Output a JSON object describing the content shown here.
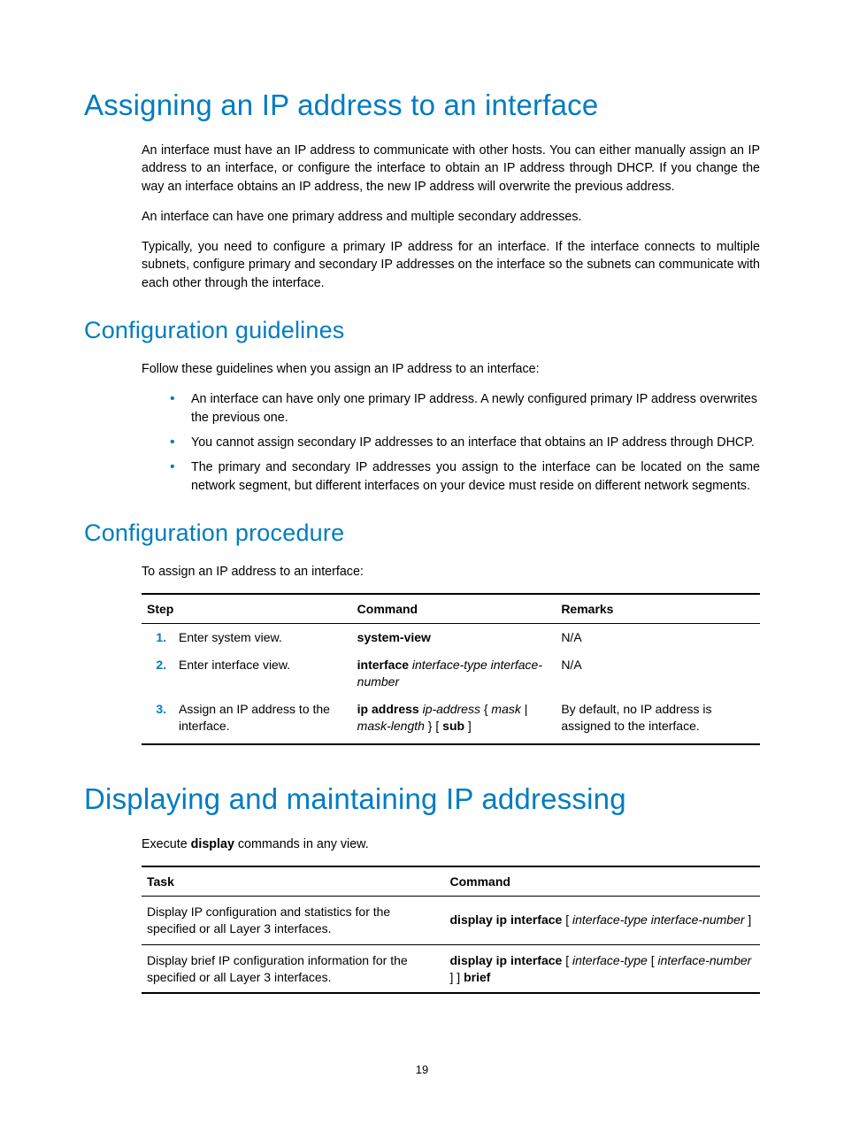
{
  "heading1": "Assigning an IP address to an interface",
  "intro_p1": "An interface must have an IP address to communicate with other hosts. You can either manually assign an IP address to an interface, or configure the interface to obtain an IP address through DHCP. If you change the way an interface obtains an IP address, the new IP address will overwrite the previous address.",
  "intro_p2": "An interface can have one primary address and multiple secondary addresses.",
  "intro_p3": "Typically, you need to configure a primary IP address for an interface. If the interface connects to multiple subnets, configure primary and secondary IP addresses on the interface so the subnets can communicate with each other through the interface.",
  "heading2": "Configuration guidelines",
  "guidelines_intro": "Follow these guidelines when you assign an IP address to an interface:",
  "bullets": [
    "An interface can have only one primary IP address. A newly configured primary IP address overwrites the previous one.",
    "You cannot assign secondary IP addresses to an interface that obtains an IP address through DHCP.",
    "The primary and secondary IP addresses you assign to the interface can be located on the same network segment, but different interfaces on your device must reside on different network segments."
  ],
  "heading3": "Configuration procedure",
  "proc_intro": "To assign an IP address to an interface:",
  "proc_table": {
    "headers": {
      "step": "Step",
      "command": "Command",
      "remarks": "Remarks"
    },
    "rows": [
      {
        "num": "1.",
        "step": "Enter system view.",
        "cmd_parts": [
          {
            "t": "b",
            "v": "system-view"
          }
        ],
        "remarks": "N/A"
      },
      {
        "num": "2.",
        "step": "Enter interface view.",
        "cmd_parts": [
          {
            "t": "b",
            "v": "interface"
          },
          {
            "t": "s",
            "v": " "
          },
          {
            "t": "i",
            "v": "interface-type interface-number"
          }
        ],
        "remarks": "N/A"
      },
      {
        "num": "3.",
        "step": "Assign an IP address to the interface.",
        "cmd_parts": [
          {
            "t": "b",
            "v": "ip address"
          },
          {
            "t": "s",
            "v": " "
          },
          {
            "t": "i",
            "v": "ip-address"
          },
          {
            "t": "s",
            "v": " { "
          },
          {
            "t": "i",
            "v": "mask"
          },
          {
            "t": "s",
            "v": " | "
          },
          {
            "t": "i",
            "v": "mask-length"
          },
          {
            "t": "s",
            "v": " } [ "
          },
          {
            "t": "b",
            "v": "sub"
          },
          {
            "t": "s",
            "v": " ]"
          }
        ],
        "remarks": "By default, no IP address is assigned to the interface."
      }
    ]
  },
  "heading4": "Displaying and maintaining IP addressing",
  "display_intro_pre": "Execute ",
  "display_intro_bold": "display",
  "display_intro_post": " commands in any view.",
  "disp_table": {
    "headers": {
      "task": "Task",
      "command": "Command"
    },
    "rows": [
      {
        "task": "Display IP configuration and statistics for the specified or all Layer 3 interfaces.",
        "cmd_parts": [
          {
            "t": "b",
            "v": "display ip interface"
          },
          {
            "t": "s",
            "v": " [ "
          },
          {
            "t": "i",
            "v": "interface-type interface-number"
          },
          {
            "t": "s",
            "v": " ]"
          }
        ]
      },
      {
        "task": "Display brief IP configuration information for the specified or all Layer 3 interfaces.",
        "cmd_parts": [
          {
            "t": "b",
            "v": "display ip interface"
          },
          {
            "t": "s",
            "v": " [ "
          },
          {
            "t": "i",
            "v": "interface-type"
          },
          {
            "t": "s",
            "v": " [ "
          },
          {
            "t": "i",
            "v": "interface-number"
          },
          {
            "t": "s",
            "v": " ] ] "
          },
          {
            "t": "b",
            "v": "brief"
          }
        ]
      }
    ]
  },
  "page_number": "19",
  "colors": {
    "heading": "#007cc1",
    "body": "#000000",
    "background": "#ffffff"
  }
}
